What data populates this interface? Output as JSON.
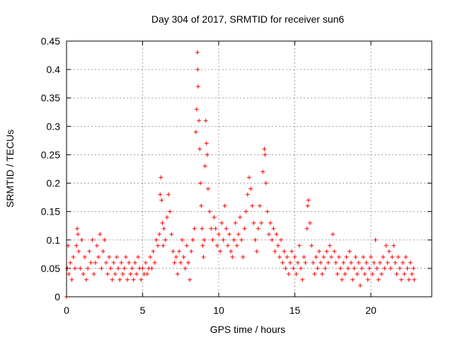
{
  "chart_data": {
    "type": "scatter",
    "title": "Day 304 of 2017, SRMTID for receiver sun6",
    "xlabel": "GPS time / hours",
    "ylabel": "SRMTID / TECUs",
    "xlim": [
      0,
      24
    ],
    "ylim": [
      0,
      0.45
    ],
    "xticks": [
      0,
      5,
      10,
      15,
      20
    ],
    "xtick_labels": [
      "0",
      "5",
      "10",
      "15",
      "20"
    ],
    "yticks": [
      0,
      0.05,
      0.1,
      0.15,
      0.2,
      0.25,
      0.3,
      0.35,
      0.4,
      0.45
    ],
    "ytick_labels": [
      "0",
      "0.05",
      "0.1",
      "0.15",
      "0.2",
      "0.25",
      "0.3",
      "0.35",
      "0.4",
      "0.45"
    ],
    "grid": true,
    "marker": "+",
    "color": "#ff0000",
    "series": [
      {
        "name": "sun6",
        "points": [
          [
            0.0,
            0.0
          ],
          [
            0.05,
            0.05
          ],
          [
            0.1,
            0.09
          ],
          [
            0.15,
            0.04
          ],
          [
            0.25,
            0.06
          ],
          [
            0.35,
            0.03
          ],
          [
            0.45,
            0.07
          ],
          [
            0.55,
            0.05
          ],
          [
            0.65,
            0.09
          ],
          [
            0.7,
            0.12
          ],
          [
            0.75,
            0.11
          ],
          [
            0.8,
            0.08
          ],
          [
            0.9,
            0.05
          ],
          [
            1.0,
            0.1
          ],
          [
            1.1,
            0.04
          ],
          [
            1.2,
            0.07
          ],
          [
            1.3,
            0.03
          ],
          [
            1.4,
            0.05
          ],
          [
            1.5,
            0.08
          ],
          [
            1.6,
            0.06
          ],
          [
            1.7,
            0.1
          ],
          [
            1.8,
            0.04
          ],
          [
            1.9,
            0.06
          ],
          [
            2.0,
            0.09
          ],
          [
            2.1,
            0.07
          ],
          [
            2.2,
            0.11
          ],
          [
            2.3,
            0.05
          ],
          [
            2.4,
            0.08
          ],
          [
            2.5,
            0.1
          ],
          [
            2.6,
            0.06
          ],
          [
            2.7,
            0.04
          ],
          [
            2.8,
            0.07
          ],
          [
            2.9,
            0.05
          ],
          [
            3.0,
            0.03
          ],
          [
            3.1,
            0.06
          ],
          [
            3.2,
            0.04
          ],
          [
            3.3,
            0.07
          ],
          [
            3.4,
            0.05
          ],
          [
            3.5,
            0.03
          ],
          [
            3.6,
            0.06
          ],
          [
            3.7,
            0.04
          ],
          [
            3.8,
            0.05
          ],
          [
            3.9,
            0.07
          ],
          [
            4.0,
            0.03
          ],
          [
            4.1,
            0.06
          ],
          [
            4.2,
            0.04
          ],
          [
            4.3,
            0.05
          ],
          [
            4.4,
            0.03
          ],
          [
            4.5,
            0.06
          ],
          [
            4.6,
            0.04
          ],
          [
            4.7,
            0.07
          ],
          [
            4.8,
            0.05
          ],
          [
            4.9,
            0.03
          ],
          [
            5.0,
            0.05
          ],
          [
            5.1,
            0.04
          ],
          [
            5.2,
            0.06
          ],
          [
            5.3,
            0.04
          ],
          [
            5.4,
            0.05
          ],
          [
            5.5,
            0.07
          ],
          [
            5.6,
            0.05
          ],
          [
            5.7,
            0.08
          ],
          [
            5.8,
            0.06
          ],
          [
            5.9,
            0.1
          ],
          [
            6.0,
            0.09
          ],
          [
            6.1,
            0.11
          ],
          [
            6.15,
            0.18
          ],
          [
            6.2,
            0.21
          ],
          [
            6.25,
            0.17
          ],
          [
            6.3,
            0.13
          ],
          [
            6.35,
            0.09
          ],
          [
            6.4,
            0.12
          ],
          [
            6.5,
            0.1
          ],
          [
            6.6,
            0.14
          ],
          [
            6.7,
            0.18
          ],
          [
            6.8,
            0.15
          ],
          [
            6.9,
            0.11
          ],
          [
            7.0,
            0.08
          ],
          [
            7.1,
            0.06
          ],
          [
            7.2,
            0.07
          ],
          [
            7.3,
            0.04
          ],
          [
            7.4,
            0.08
          ],
          [
            7.5,
            0.06
          ],
          [
            7.6,
            0.1
          ],
          [
            7.7,
            0.07
          ],
          [
            7.8,
            0.05
          ],
          [
            7.9,
            0.09
          ],
          [
            8.0,
            0.06
          ],
          [
            8.1,
            0.03
          ],
          [
            8.2,
            0.08
          ],
          [
            8.3,
            0.1
          ],
          [
            8.4,
            0.12
          ],
          [
            8.5,
            0.29
          ],
          [
            8.55,
            0.33
          ],
          [
            8.6,
            0.43
          ],
          [
            8.62,
            0.4
          ],
          [
            8.65,
            0.37
          ],
          [
            8.7,
            0.31
          ],
          [
            8.75,
            0.26
          ],
          [
            8.8,
            0.2
          ],
          [
            8.85,
            0.16
          ],
          [
            8.9,
            0.12
          ],
          [
            8.95,
            0.09
          ],
          [
            9.0,
            0.07
          ],
          [
            9.05,
            0.1
          ],
          [
            9.1,
            0.23
          ],
          [
            9.15,
            0.31
          ],
          [
            9.2,
            0.27
          ],
          [
            9.25,
            0.25
          ],
          [
            9.3,
            0.19
          ],
          [
            9.4,
            0.15
          ],
          [
            9.5,
            0.12
          ],
          [
            9.6,
            0.1
          ],
          [
            9.7,
            0.14
          ],
          [
            9.8,
            0.12
          ],
          [
            9.9,
            0.09
          ],
          [
            10.0,
            0.11
          ],
          [
            10.1,
            0.08
          ],
          [
            10.2,
            0.13
          ],
          [
            10.3,
            0.1
          ],
          [
            10.4,
            0.16
          ],
          [
            10.5,
            0.12
          ],
          [
            10.6,
            0.09
          ],
          [
            10.7,
            0.11
          ],
          [
            10.8,
            0.08
          ],
          [
            10.9,
            0.07
          ],
          [
            11.0,
            0.1
          ],
          [
            11.1,
            0.13
          ],
          [
            11.2,
            0.09
          ],
          [
            11.3,
            0.11
          ],
          [
            11.4,
            0.14
          ],
          [
            11.5,
            0.1
          ],
          [
            11.6,
            0.07
          ],
          [
            11.7,
            0.12
          ],
          [
            11.8,
            0.15
          ],
          [
            11.9,
            0.18
          ],
          [
            12.0,
            0.21
          ],
          [
            12.1,
            0.19
          ],
          [
            12.2,
            0.16
          ],
          [
            12.3,
            0.13
          ],
          [
            12.4,
            0.1
          ],
          [
            12.5,
            0.08
          ],
          [
            12.6,
            0.12
          ],
          [
            12.7,
            0.16
          ],
          [
            12.8,
            0.13
          ],
          [
            12.9,
            0.22
          ],
          [
            13.0,
            0.26
          ],
          [
            13.05,
            0.25
          ],
          [
            13.1,
            0.2
          ],
          [
            13.2,
            0.15
          ],
          [
            13.3,
            0.11
          ],
          [
            13.4,
            0.13
          ],
          [
            13.5,
            0.1
          ],
          [
            13.6,
            0.12
          ],
          [
            13.7,
            0.08
          ],
          [
            13.8,
            0.11
          ],
          [
            13.9,
            0.09
          ],
          [
            14.0,
            0.07
          ],
          [
            14.1,
            0.1
          ],
          [
            14.2,
            0.06
          ],
          [
            14.3,
            0.08
          ],
          [
            14.4,
            0.05
          ],
          [
            14.5,
            0.07
          ],
          [
            14.6,
            0.04
          ],
          [
            14.7,
            0.06
          ],
          [
            14.8,
            0.08
          ],
          [
            14.9,
            0.05
          ],
          [
            15.0,
            0.07
          ],
          [
            15.1,
            0.04
          ],
          [
            15.2,
            0.06
          ],
          [
            15.3,
            0.09
          ],
          [
            15.4,
            0.05
          ],
          [
            15.5,
            0.03
          ],
          [
            15.6,
            0.07
          ],
          [
            15.7,
            0.06
          ],
          [
            15.8,
            0.12
          ],
          [
            15.85,
            0.16
          ],
          [
            15.9,
            0.17
          ],
          [
            16.0,
            0.13
          ],
          [
            16.1,
            0.09
          ],
          [
            16.2,
            0.06
          ],
          [
            16.3,
            0.04
          ],
          [
            16.4,
            0.07
          ],
          [
            16.5,
            0.05
          ],
          [
            16.6,
            0.08
          ],
          [
            16.7,
            0.06
          ],
          [
            16.8,
            0.04
          ],
          [
            16.9,
            0.07
          ],
          [
            17.0,
            0.05
          ],
          [
            17.1,
            0.08
          ],
          [
            17.2,
            0.06
          ],
          [
            17.3,
            0.09
          ],
          [
            17.4,
            0.07
          ],
          [
            17.5,
            0.11
          ],
          [
            17.6,
            0.08
          ],
          [
            17.7,
            0.06
          ],
          [
            17.8,
            0.04
          ],
          [
            17.9,
            0.07
          ],
          [
            18.0,
            0.05
          ],
          [
            18.1,
            0.03
          ],
          [
            18.2,
            0.06
          ],
          [
            18.3,
            0.04
          ],
          [
            18.4,
            0.07
          ],
          [
            18.5,
            0.05
          ],
          [
            18.6,
            0.08
          ],
          [
            18.7,
            0.06
          ],
          [
            18.8,
            0.03
          ],
          [
            18.9,
            0.05
          ],
          [
            19.0,
            0.07
          ],
          [
            19.1,
            0.04
          ],
          [
            19.2,
            0.06
          ],
          [
            19.3,
            0.02
          ],
          [
            19.4,
            0.05
          ],
          [
            19.5,
            0.07
          ],
          [
            19.6,
            0.04
          ],
          [
            19.7,
            0.06
          ],
          [
            19.8,
            0.03
          ],
          [
            19.9,
            0.05
          ],
          [
            20.0,
            0.07
          ],
          [
            20.1,
            0.04
          ],
          [
            20.2,
            0.06
          ],
          [
            20.3,
            0.1
          ],
          [
            20.4,
            0.05
          ],
          [
            20.5,
            0.03
          ],
          [
            20.6,
            0.06
          ],
          [
            20.7,
            0.04
          ],
          [
            20.8,
            0.07
          ],
          [
            20.9,
            0.05
          ],
          [
            21.0,
            0.09
          ],
          [
            21.1,
            0.06
          ],
          [
            21.2,
            0.08
          ],
          [
            21.3,
            0.05
          ],
          [
            21.4,
            0.07
          ],
          [
            21.5,
            0.09
          ],
          [
            21.6,
            0.06
          ],
          [
            21.7,
            0.04
          ],
          [
            21.8,
            0.07
          ],
          [
            21.9,
            0.05
          ],
          [
            22.0,
            0.03
          ],
          [
            22.1,
            0.06
          ],
          [
            22.2,
            0.04
          ],
          [
            22.3,
            0.07
          ],
          [
            22.4,
            0.05
          ],
          [
            22.5,
            0.03
          ],
          [
            22.6,
            0.06
          ],
          [
            22.7,
            0.04
          ],
          [
            22.8,
            0.05
          ],
          [
            22.85,
            0.03
          ]
        ]
      }
    ]
  }
}
